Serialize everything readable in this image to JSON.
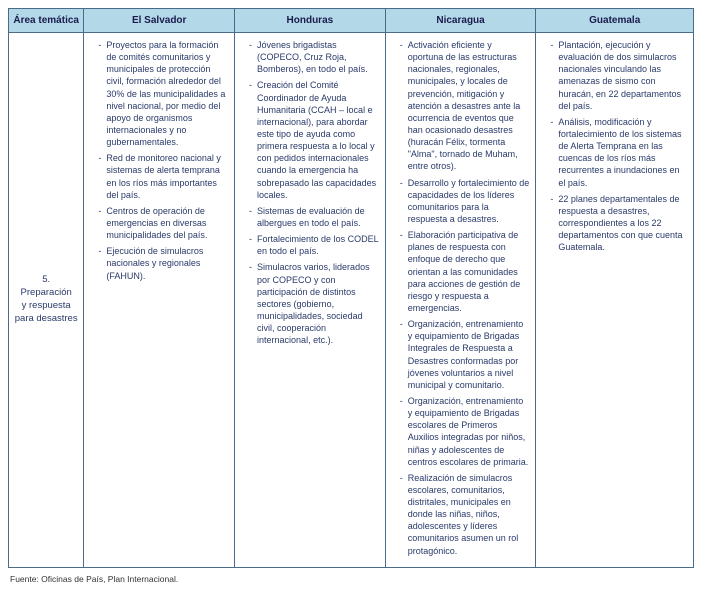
{
  "headers": {
    "area": "Área temática",
    "es": "El Salvador",
    "hn": "Honduras",
    "ni": "Nicaragua",
    "gt": "Guatemala"
  },
  "row": {
    "area_num": "5.",
    "area_label_l1": "Preparación",
    "area_label_l2": "y respuesta",
    "area_label_l3": "para desastres",
    "es": [
      "Proyectos para la formación de comités comunitarios y municipales de protección civil, formación alrededor del 30% de las municipalidades a nivel nacional, por medio del apoyo de organismos internacionales y no gubernamentales.",
      "Red de monitoreo nacional y sistemas de alerta temprana en los ríos más importantes del país.",
      "Centros de operación de emergencias en diversas municipalidades del país.",
      "Ejecución de simulacros nacionales y regionales (FAHUN)."
    ],
    "hn": [
      "Jóvenes brigadistas (COPECO, Cruz Roja, Bomberos), en todo el país.",
      "Creación del Comité Coordinador de Ayuda Humanitaria (CCAH – local e internacional), para abordar este tipo de ayuda como primera respuesta a lo local y con pedidos internacionales cuando la emergencia  ha sobrepasado las capacidades locales.",
      "Sistemas de evaluación de albergues en todo el país.",
      "Fortalecimiento de los CODEL en todo el país.",
      "Simulacros varios, liderados por COPECO y con participación de distintos sectores (gobierno, municipalidades, sociedad civil, cooperación internacional, etc.)."
    ],
    "ni": [
      "Activación eficiente y oportuna de las estructuras nacionales, regionales, municipales, y locales de prevención, mitigación y atención a desastres ante la ocurrencia de eventos que han ocasionado desastres (huracán Félix, tormenta \"Alma\", tornado de Muham, entre otros).",
      "Desarrollo y fortalecimiento de capacidades de los líderes comunitarios para la respuesta a desastres.",
      "Elaboración participativa de planes de respuesta con enfoque de derecho que orientan a las comunidades para acciones de gestión de riesgo y respuesta a emergencias.",
      "Organización, entrenamiento y equipamiento de Brigadas Integrales de Respuesta a Desastres conformadas por jóvenes voluntarios a nivel municipal y comunitario.",
      "Organización, entrenamiento y equipamiento de Brigadas escolares de Primeros Auxilios integradas por niños, niñas y adolescentes de centros escolares de primaria.",
      "Realización de simulacros escolares, comunitarios, distritales, municipales en donde las niñas, niños, adolescentes y líderes comunitarios asumen un rol protagónico."
    ],
    "gt": [
      "Plantación, ejecución y evaluación de dos simulacros nacionales vinculando las amenazas de sismo con huracán, en 22 departamentos del país.",
      "Análisis, modificación y fortalecimiento de los sistemas de Alerta Temprana en las cuencas de los ríos más recurrentes a inundaciones en el país.",
      "22 planes departamentales de respuesta a desastres, correspondientes a los 22 departamentos con que cuenta Guatemala."
    ]
  },
  "source": "Fuente: Oficinas de País, Plan Internacional."
}
